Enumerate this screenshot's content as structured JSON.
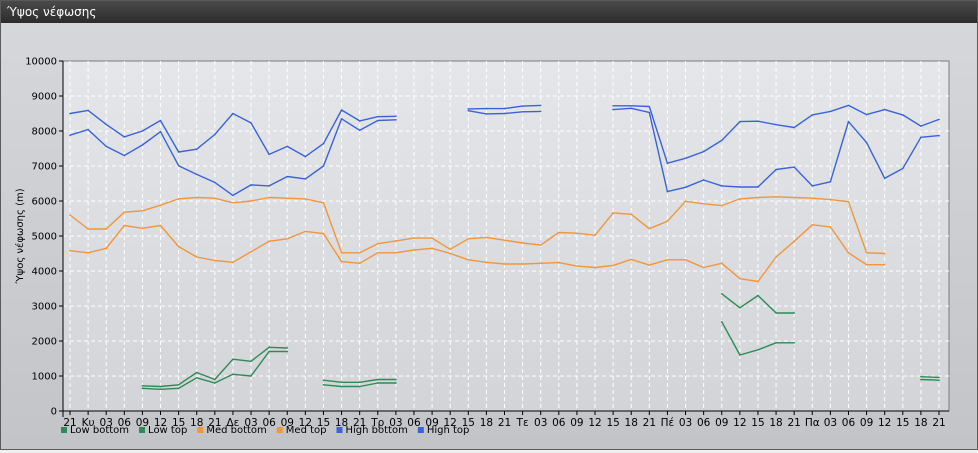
{
  "window": {
    "title": "Ύψος νέφωσης"
  },
  "chart_data": {
    "type": "line",
    "ylabel": "Ύψος νέφωσης (m)",
    "ylim": [
      0,
      10000
    ],
    "yticks": [
      0,
      1000,
      2000,
      3000,
      4000,
      5000,
      6000,
      7000,
      8000,
      9000,
      10000
    ],
    "grid": true,
    "legend_position": "bottom-left",
    "categories": [
      "21",
      "Κυ",
      "03",
      "06",
      "09",
      "12",
      "15",
      "18",
      "21",
      "Δε",
      "03",
      "06",
      "09",
      "12",
      "15",
      "18",
      "21",
      "Τρ",
      "03",
      "06",
      "09",
      "12",
      "15",
      "18",
      "21",
      "Τε",
      "03",
      "06",
      "09",
      "12",
      "15",
      "18",
      "21",
      "Πέ",
      "03",
      "06",
      "09",
      "12",
      "15",
      "18",
      "21",
      "Πα",
      "03",
      "06",
      "09",
      "12",
      "15",
      "18",
      "21"
    ],
    "series": [
      {
        "name": "Low bottom",
        "color": "#2e8b57",
        "values": [
          null,
          null,
          null,
          null,
          650,
          620,
          650,
          950,
          800,
          1050,
          1000,
          1700,
          1700,
          null,
          750,
          700,
          700,
          800,
          800,
          null,
          null,
          null,
          null,
          null,
          null,
          null,
          null,
          null,
          null,
          null,
          null,
          null,
          null,
          null,
          null,
          null,
          2550,
          1600,
          1750,
          1950,
          1950,
          null,
          null,
          null,
          null,
          null,
          null,
          900,
          880
        ]
      },
      {
        "name": "Low top",
        "color": "#2e8b57",
        "values": [
          null,
          null,
          null,
          null,
          720,
          700,
          750,
          1100,
          900,
          1480,
          1420,
          1820,
          1800,
          null,
          880,
          820,
          820,
          900,
          900,
          null,
          null,
          null,
          null,
          null,
          null,
          null,
          null,
          null,
          null,
          null,
          null,
          null,
          null,
          null,
          null,
          null,
          3350,
          2950,
          3300,
          2800,
          2800,
          null,
          null,
          null,
          null,
          null,
          null,
          980,
          960
        ]
      },
      {
        "name": "Med bottom",
        "color": "#f0963c",
        "values": [
          4580,
          4520,
          4650,
          5300,
          5220,
          5300,
          4700,
          4400,
          4300,
          4250,
          4550,
          4850,
          4920,
          5130,
          5070,
          4270,
          4220,
          4520,
          4520,
          4600,
          4650,
          4500,
          4320,
          4250,
          4200,
          4200,
          4220,
          4240,
          4140,
          4100,
          4160,
          4330,
          4170,
          4320,
          4320,
          4100,
          4220,
          3780,
          3700,
          4400,
          4850,
          5320,
          5260,
          4520,
          4180,
          4180,
          null,
          null,
          null
        ]
      },
      {
        "name": "Med top",
        "color": "#f0963c",
        "values": [
          5600,
          5200,
          5200,
          5680,
          5720,
          5880,
          6060,
          6100,
          6080,
          5950,
          6000,
          6100,
          6080,
          6060,
          5950,
          4520,
          4520,
          4780,
          4860,
          4940,
          4940,
          4620,
          4920,
          4960,
          4880,
          4800,
          4740,
          5100,
          5080,
          5020,
          5660,
          5620,
          5210,
          5420,
          5990,
          5920,
          5870,
          6060,
          6100,
          6120,
          6100,
          6080,
          6040,
          5980,
          4520,
          4500,
          null,
          null,
          null
        ]
      },
      {
        "name": "High bottom",
        "color": "#3a63d8",
        "values": [
          7880,
          8040,
          7560,
          7300,
          7600,
          7980,
          7010,
          6760,
          6530,
          6160,
          6460,
          6430,
          6700,
          6630,
          7000,
          8350,
          8020,
          8300,
          8320,
          null,
          null,
          null,
          8580,
          8490,
          8500,
          8550,
          8560,
          null,
          null,
          null,
          8610,
          8650,
          8530,
          6270,
          6390,
          6600,
          6430,
          6400,
          6400,
          6900,
          6970,
          6430,
          6550,
          8270,
          7670,
          6650,
          6930,
          7820,
          7870
        ]
      },
      {
        "name": "High top",
        "color": "#3a63d8",
        "values": [
          8500,
          8590,
          8190,
          7830,
          8000,
          8300,
          7400,
          7480,
          7900,
          8500,
          8230,
          7330,
          7560,
          7270,
          7640,
          8600,
          8290,
          8410,
          8420,
          null,
          null,
          null,
          8630,
          8640,
          8640,
          8710,
          8730,
          null,
          null,
          null,
          8720,
          8720,
          8700,
          7080,
          7220,
          7410,
          7730,
          8270,
          8280,
          8180,
          8100,
          8460,
          8560,
          8730,
          8470,
          8610,
          8460,
          8140,
          8330
        ]
      }
    ]
  }
}
